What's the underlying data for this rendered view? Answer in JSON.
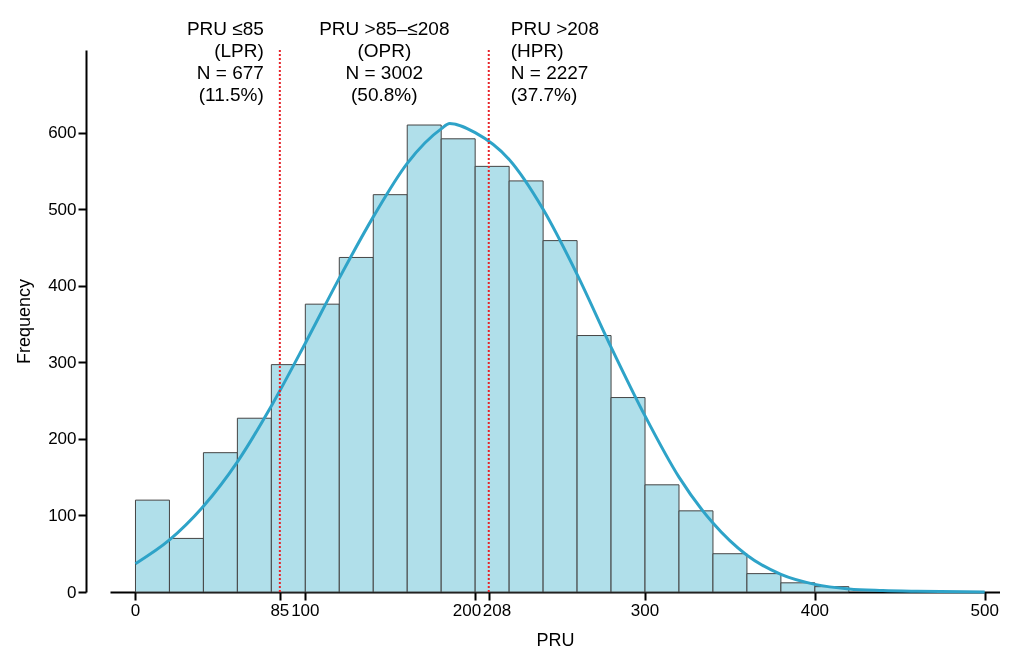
{
  "chart_data": {
    "type": "histogram",
    "xlabel": "PRU",
    "ylabel": "Frequency",
    "bins": [
      0,
      20,
      40,
      60,
      80,
      100,
      120,
      140,
      160,
      180,
      200,
      220,
      240,
      260,
      280,
      300,
      320,
      340,
      360,
      380,
      400,
      420
    ],
    "series": [
      {
        "color": "#b0dfea",
        "values": [
          120,
          70,
          182,
          227,
          297,
          376,
          437,
          519,
          610,
          592,
          556,
          537,
          459,
          335,
          254,
          140,
          106,
          50,
          24,
          12,
          7
        ]
      },
      {
        "type": "line",
        "color": "#2ea3c8",
        "x": [
          0,
          20,
          40,
          60,
          80,
          100,
          120,
          140,
          160,
          180,
          185,
          200,
          220,
          240,
          260,
          280,
          300,
          320,
          340,
          360,
          380,
          400,
          420,
          440,
          460,
          500
        ],
        "values": [
          37,
          68,
          112,
          170,
          243,
          325,
          410,
          490,
          560,
          605,
          612,
          600,
          565,
          500,
          415,
          320,
          230,
          150,
          90,
          48,
          23,
          10,
          4,
          2,
          1,
          0
        ]
      }
    ],
    "xlim": [
      -15,
      509
    ],
    "xticks": [
      0,
      85,
      100,
      200,
      208,
      300,
      400,
      500
    ],
    "ylim": [
      0,
      708
    ],
    "yticks": [
      0,
      100,
      200,
      300,
      400,
      500,
      600
    ],
    "ref_lines": [
      {
        "axis": "x",
        "value": 85,
        "color": "#e8242a",
        "line_style": "dotted"
      },
      {
        "axis": "x",
        "value": 208,
        "color": "#e8242a",
        "line_style": "dotted"
      }
    ],
    "annotations": [
      "PRU ≤85\n(LPR)\nN = 677\n(11.5%)",
      "PRU >85–≤208\n(OPR)\nN = 3002\n(50.8%)",
      "PRU >208\n(HPR)\nN = 2227\n(37.7%)"
    ],
    "grid": false
  }
}
